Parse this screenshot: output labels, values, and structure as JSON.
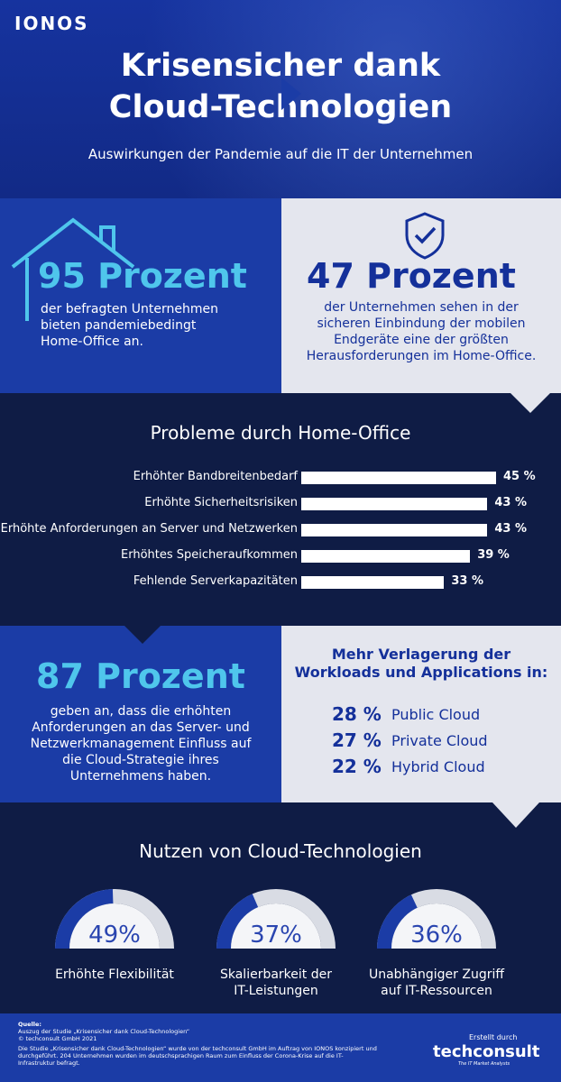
{
  "brand": {
    "logo": "IONOS"
  },
  "header": {
    "title": "Krisensicher dank\nCloud-Technologien",
    "subtitle": "Auswirkungen der Pandemie auf die IT der Unternehmen"
  },
  "section1": {
    "left": {
      "headline": "95 Prozent",
      "text": "der befragten Unternehmen\nbieten pandemiebedingt\nHome-Office an.",
      "icon": "house-icon"
    },
    "right": {
      "headline": "47 Prozent",
      "text": "der Unternehmen sehen in der\nsicheren Einbindung der mobilen\nEndgeräte eine der größten\nHerausforderungen im Home-Office.",
      "icon": "shield-check-icon"
    }
  },
  "chart_data": {
    "type": "bar",
    "title": "Probleme durch Home-Office",
    "categories": [
      "Erhöhter Bandbreitenbedarf",
      "Erhöhte Sicherheitsrisiken",
      "Erhöhte Anforderungen an Server und Netzwerken",
      "Erhöhtes Speicheraufkommen",
      "Fehlende Serverkapazitäten"
    ],
    "values": [
      45,
      43,
      43,
      39,
      33
    ],
    "value_labels": [
      "45 %",
      "43 %",
      "43 %",
      "39 %",
      "33 %"
    ]
  },
  "section3": {
    "left": {
      "headline": "87 Prozent",
      "text": "geben an, dass die erhöhten\nAnforderungen an das Server- und\nNetzwerkmanagement Einfluss auf\ndie Cloud-Strategie ihres\nUnternehmens haben."
    },
    "right": {
      "title": "Mehr Verlagerung der\nWorkloads und Applications in:",
      "items": [
        {
          "pct": "28 %",
          "label": "Public Cloud"
        },
        {
          "pct": "27 %",
          "label": "Private Cloud"
        },
        {
          "pct": "22 %",
          "label": "Hybrid Cloud"
        }
      ]
    }
  },
  "section4": {
    "title": "Nutzen von Cloud-Technologien",
    "gauges": [
      {
        "value": 49,
        "display": "49%",
        "label": "Erhöhte Flexibilität"
      },
      {
        "value": 37,
        "display": "37%",
        "label": "Skalierbarkeit der\nIT-Leistungen"
      },
      {
        "value": 36,
        "display": "36%",
        "label": "Unabhängiger Zugriff\nauf IT-Ressourcen"
      }
    ]
  },
  "footer": {
    "quelle": "Quelle:",
    "source_line1": "Auszug der Studie „Krisensicher dank Cloud-Technologien“",
    "source_line2": "© techconsult GmbH 2021",
    "description": "Die Studie „Krisensicher dank Cloud-Technologien“ wurde von der techconsult GmbH im Auftrag von IONOS konzipiert und durchgeführt. 204 Unternehmen wurden im deutschsprachigen Raum zum Einfluss der Corona-Krise auf die IT-Infrastruktur befragt.",
    "created_by": "Erstellt durch",
    "partner_logo": "techconsult",
    "partner_tagline": "The IT Market Analysts"
  },
  "colors": {
    "dark_navy": "#0f1c45",
    "brand_blue": "#1b3ca6",
    "cyan": "#4fc6ec",
    "light_grey": "#e4e6ee"
  }
}
